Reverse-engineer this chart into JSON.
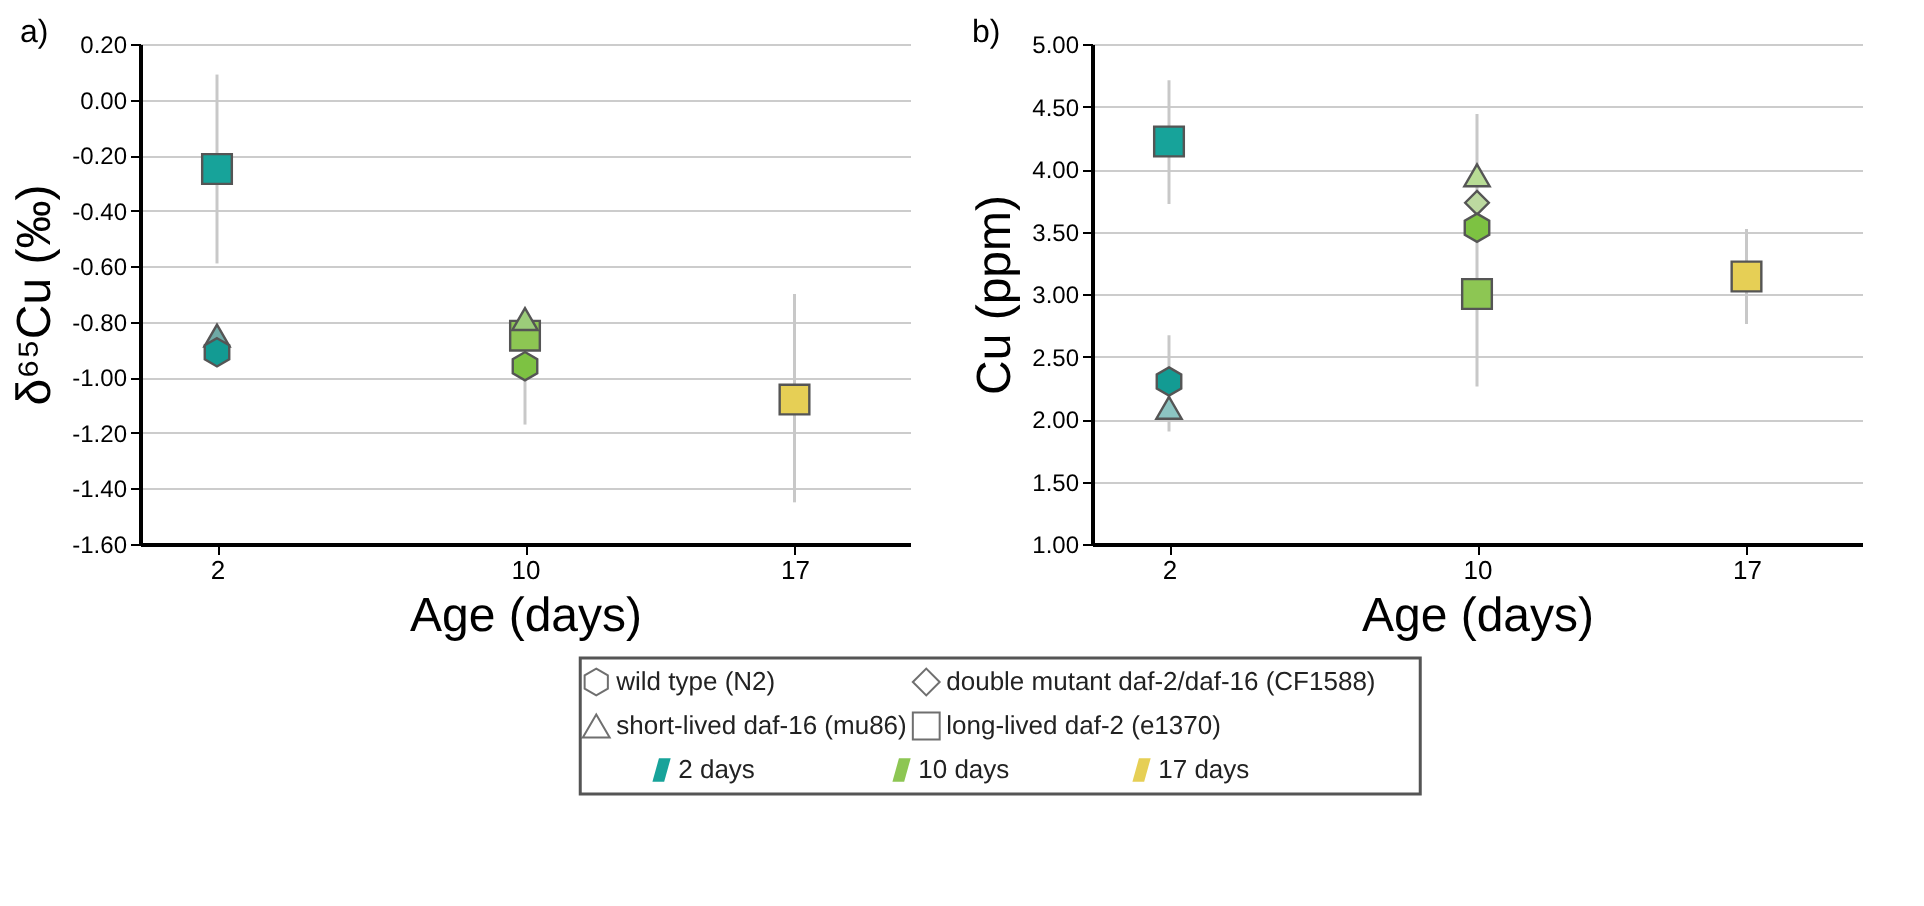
{
  "chart_data": [
    {
      "type": "scatter",
      "title": "a)",
      "xlabel": "Age (days)",
      "ylabel": "δ⁶⁵Cu (‰)",
      "xlim": [
        0,
        20
      ],
      "xticks": [
        2,
        10,
        17
      ],
      "ylim": [
        -1.6,
        0.2
      ],
      "yticks": [
        {
          "value": 0.2,
          "label": "0.20"
        },
        {
          "value": 0,
          "label": "0.00"
        },
        {
          "value": -0.2,
          "label": "-0.20"
        },
        {
          "value": -0.4,
          "label": "-0.40"
        },
        {
          "value": -0.6,
          "label": "-0.60"
        },
        {
          "value": -0.8,
          "label": "-0.80"
        },
        {
          "value": -1.0,
          "label": "-1.00"
        },
        {
          "value": -1.2,
          "label": "-1.20"
        },
        {
          "value": -1.4,
          "label": "-1.40"
        },
        {
          "value": -1.6,
          "label": "-1.60"
        }
      ],
      "grid": "y",
      "series": [
        {
          "x": [
            2,
            10
          ],
          "values": [
            -0.91,
            -0.96
          ],
          "colors": [
            "#139b93",
            "#7dc242"
          ],
          "errors": [
            null,
            [
              -1.17,
              -0.96
            ]
          ]
        },
        {
          "marker": "triangle",
          "x": [
            2,
            10
          ],
          "values": [
            -0.85,
            -0.79
          ],
          "colors": [
            "#6faaa6",
            "#9ccc7a"
          ]
        },
        {
          "marker": "square",
          "x": [
            2,
            10,
            17
          ],
          "values": [
            -0.25,
            -0.85,
            -1.08
          ],
          "colors": [
            "#17a39a",
            "#8dc653",
            "#e6cf55"
          ],
          "errors": [
            [
              -0.59,
              0.09
            ],
            null,
            [
              -1.45,
              -0.7
            ]
          ]
        }
      ]
    },
    {
      "type": "scatter",
      "title": "b)",
      "xlabel": "Age (days)",
      "ylabel": "Cu (ppm)",
      "xlim": [
        0,
        20
      ],
      "xticks": [
        2,
        10,
        17
      ],
      "ylim": [
        1.0,
        5.0
      ],
      "yticks": [
        {
          "value": 1.0,
          "label": "1.00"
        },
        {
          "value": 1.5,
          "label": "1.50"
        },
        {
          "value": 2.0,
          "label": "2.00"
        },
        {
          "value": 2.5,
          "label": "2.50"
        },
        {
          "value": 3.0,
          "label": "3.00"
        },
        {
          "value": 3.5,
          "label": "3.50"
        },
        {
          "value": 4.0,
          "label": "4.00"
        },
        {
          "value": 4.5,
          "label": "4.50"
        },
        {
          "value": 5.0,
          "label": "5.00"
        }
      ],
      "grid": "y",
      "series": [
        {
          "x": [
            2,
            10
          ],
          "values": [
            2.3,
            3.53
          ],
          "colors": [
            "#139b93",
            "#7dc242"
          ],
          "errors": [
            [
              1.9,
              2.67
            ],
            null
          ]
        },
        {
          "marker": "diamond",
          "x": [
            10
          ],
          "values": [
            3.73
          ],
          "colors": [
            "#bcd9a0"
          ]
        },
        {
          "marker": "triangle",
          "x": [
            2,
            10
          ],
          "values": [
            2.09,
            3.95
          ],
          "colors": [
            "#8cc5c2",
            "#b8dc95"
          ]
        },
        {
          "marker": "square",
          "x": [
            2,
            10,
            17
          ],
          "values": [
            4.22,
            3.0,
            3.14
          ],
          "colors": [
            "#17a39a",
            "#8dc653",
            "#e6cf55"
          ],
          "errors": [
            [
              3.72,
              4.71
            ],
            [
              2.26,
              4.44
            ],
            [
              2.76,
              3.52
            ]
          ]
        }
      ]
    },
    {
      "type": "other",
      "annotations": [
        "wild type (N2)",
        "double mutant daf-2/daf-16 (CF1588)",
        "short-lived daf-16 (mu86)",
        "long-lived daf-2 (e1370)",
        "2 days",
        "10 days",
        "17 days"
      ],
      "colors": [
        "#17a39a",
        "#8dc653",
        "#e6cf55"
      ]
    }
  ]
}
